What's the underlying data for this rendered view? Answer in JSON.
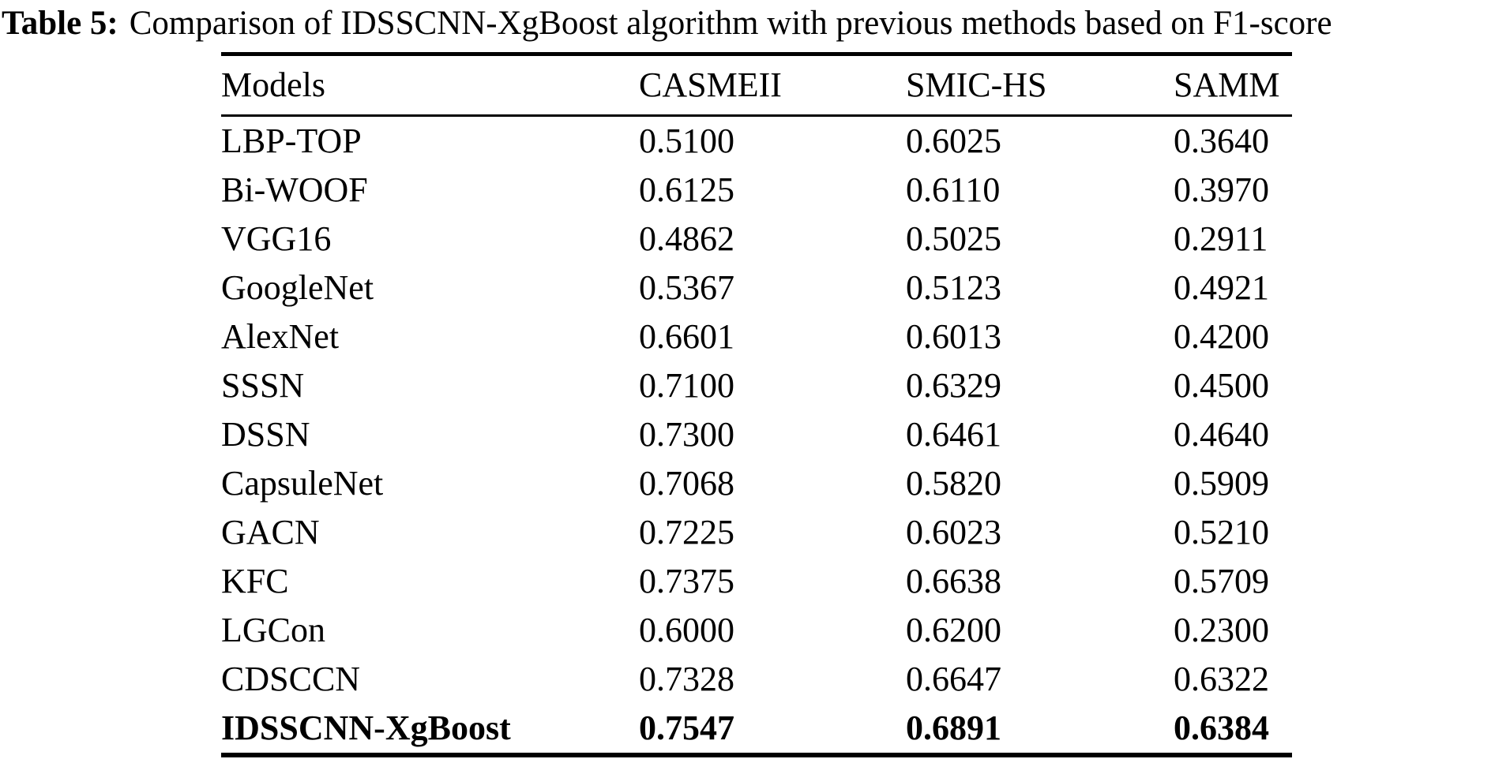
{
  "caption": {
    "label": "Table 5:",
    "text": "Comparison of IDSSCNN-XgBoost algorithm with previous methods based on F1-score"
  },
  "table": {
    "columns": [
      "Models",
      "CASMEII",
      "SMIC-HS",
      "SAMM"
    ],
    "rows": [
      {
        "model": "LBP-TOP",
        "values": [
          "0.5100",
          "0.6025",
          "0.3640"
        ],
        "bold": false
      },
      {
        "model": "Bi-WOOF",
        "values": [
          "0.6125",
          "0.6110",
          "0.3970"
        ],
        "bold": false
      },
      {
        "model": "VGG16",
        "values": [
          "0.4862",
          "0.5025",
          "0.2911"
        ],
        "bold": false
      },
      {
        "model": "GoogleNet",
        "values": [
          "0.5367",
          "0.5123",
          "0.4921"
        ],
        "bold": false
      },
      {
        "model": "AlexNet",
        "values": [
          "0.6601",
          "0.6013",
          "0.4200"
        ],
        "bold": false
      },
      {
        "model": "SSSN",
        "values": [
          "0.7100",
          "0.6329",
          "0.4500"
        ],
        "bold": false
      },
      {
        "model": "DSSN",
        "values": [
          "0.7300",
          "0.6461",
          "0.4640"
        ],
        "bold": false
      },
      {
        "model": "CapsuleNet",
        "values": [
          "0.7068",
          "0.5820",
          "0.5909"
        ],
        "bold": false
      },
      {
        "model": "GACN",
        "values": [
          "0.7225",
          "0.6023",
          "0.5210"
        ],
        "bold": false
      },
      {
        "model": "KFC",
        "values": [
          "0.7375",
          "0.6638",
          "0.5709"
        ],
        "bold": false
      },
      {
        "model": "LGCon",
        "values": [
          "0.6000",
          "0.6200",
          "0.2300"
        ],
        "bold": false
      },
      {
        "model": "CDSCCN",
        "values": [
          "0.7328",
          "0.6647",
          "0.6322"
        ],
        "bold": false
      },
      {
        "model": "IDSSCNN-XgBoost",
        "values": [
          "0.7547",
          "0.6891",
          "0.6384"
        ],
        "bold": true
      }
    ]
  },
  "chart_data": {
    "type": "table",
    "title": "Table 5: Comparison of IDSSCNN-XgBoost algorithm with previous methods based on F1-score",
    "columns": [
      "Models",
      "CASMEII",
      "SMIC-HS",
      "SAMM"
    ],
    "categories": [
      "LBP-TOP",
      "Bi-WOOF",
      "VGG16",
      "GoogleNet",
      "AlexNet",
      "SSSN",
      "DSSN",
      "CapsuleNet",
      "GACN",
      "KFC",
      "LGCon",
      "CDSCCN",
      "IDSSCNN-XgBoost"
    ],
    "series": [
      {
        "name": "CASMEII",
        "values": [
          0.51,
          0.6125,
          0.4862,
          0.5367,
          0.6601,
          0.71,
          0.73,
          0.7068,
          0.7225,
          0.7375,
          0.6,
          0.7328,
          0.7547
        ]
      },
      {
        "name": "SMIC-HS",
        "values": [
          0.6025,
          0.611,
          0.5025,
          0.5123,
          0.6013,
          0.6329,
          0.6461,
          0.582,
          0.6023,
          0.6638,
          0.62,
          0.6647,
          0.6891
        ]
      },
      {
        "name": "SAMM",
        "values": [
          0.364,
          0.397,
          0.2911,
          0.4921,
          0.42,
          0.45,
          0.464,
          0.5909,
          0.521,
          0.5709,
          0.23,
          0.6322,
          0.6384
        ]
      }
    ],
    "best_row": "IDSSCNN-XgBoost"
  },
  "colors": {
    "background": "#ffffff",
    "text": "#000000",
    "rule": "#000000"
  }
}
